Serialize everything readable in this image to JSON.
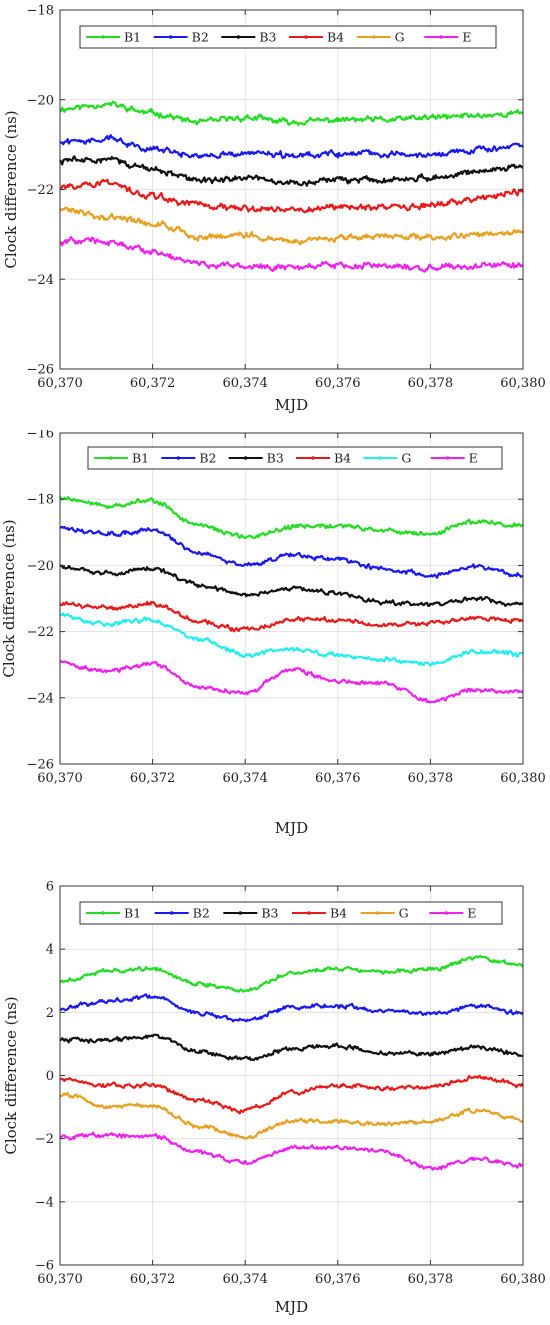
{
  "chart_data": [
    {
      "type": "line",
      "xlabel": "MJD",
      "ylabel": "Clock difference (ns)",
      "xlim": [
        60370,
        60380
      ],
      "ylim": [
        -26,
        -18
      ],
      "xticks": [
        60370,
        60372,
        60374,
        60376,
        60378,
        60380
      ],
      "xtick_labels": [
        "60,370",
        "60,372",
        "60,374",
        "60,376",
        "60,378",
        "60,380"
      ],
      "yticks": [
        -26,
        -24,
        -22,
        -20,
        -18
      ],
      "ytick_labels": [
        "−26",
        "−24",
        "−22",
        "−20",
        "−18"
      ],
      "grid": true,
      "legend_position": "top",
      "x": [
        60370,
        60371,
        60372,
        60373,
        60374,
        60375,
        60376,
        60377,
        60378,
        60379,
        60380
      ],
      "series": [
        {
          "name": "B1",
          "color": "#22dd22",
          "values": [
            -20.2,
            -20.1,
            -20.3,
            -20.5,
            -20.4,
            -20.5,
            -20.45,
            -20.45,
            -20.4,
            -20.35,
            -20.3
          ]
        },
        {
          "name": "B2",
          "color": "#1a1aee",
          "values": [
            -20.95,
            -20.85,
            -21.1,
            -21.25,
            -21.2,
            -21.25,
            -21.2,
            -21.2,
            -21.2,
            -21.1,
            -21.05
          ]
        },
        {
          "name": "B3",
          "color": "#111111",
          "values": [
            -21.35,
            -21.3,
            -21.55,
            -21.8,
            -21.75,
            -21.85,
            -21.8,
            -21.8,
            -21.75,
            -21.6,
            -21.5
          ]
        },
        {
          "name": "B4",
          "color": "#e81a1a",
          "values": [
            -21.95,
            -21.85,
            -22.15,
            -22.35,
            -22.4,
            -22.45,
            -22.4,
            -22.4,
            -22.35,
            -22.2,
            -22.05
          ]
        },
        {
          "name": "G",
          "color": "#e8a020",
          "values": [
            -22.45,
            -22.6,
            -22.75,
            -23.05,
            -23.0,
            -23.15,
            -23.1,
            -23.05,
            -23.05,
            -23.0,
            -22.95
          ]
        },
        {
          "name": "E",
          "color": "#ee22ee",
          "values": [
            -23.15,
            -23.15,
            -23.4,
            -23.65,
            -23.7,
            -23.75,
            -23.7,
            -23.7,
            -23.75,
            -23.7,
            -23.7
          ]
        }
      ]
    },
    {
      "type": "line",
      "xlabel": "MJD",
      "ylabel": "Clock difference (ns)",
      "xlim": [
        60370,
        60380
      ],
      "ylim": [
        -26,
        -16
      ],
      "xticks": [
        60370,
        60372,
        60374,
        60376,
        60378,
        60380
      ],
      "xtick_labels": [
        "60,370",
        "60,372",
        "60,374",
        "60,376",
        "60,378",
        "60,380"
      ],
      "yticks": [
        -26,
        -24,
        -22,
        -20,
        -18,
        -16
      ],
      "ytick_labels": [
        "−26",
        "−24",
        "−22",
        "−20",
        "−18",
        "−16"
      ],
      "grid": true,
      "legend_position": "top",
      "x": [
        60370,
        60371,
        60372,
        60373,
        60374,
        60375,
        60376,
        60377,
        60378,
        60379,
        60380
      ],
      "series": [
        {
          "name": "B1",
          "color": "#22dd22",
          "values": [
            -17.95,
            -18.2,
            -18.05,
            -18.8,
            -19.15,
            -18.85,
            -18.8,
            -18.95,
            -19.05,
            -18.65,
            -18.8
          ]
        },
        {
          "name": "B2",
          "color": "#1a1aee",
          "values": [
            -18.85,
            -19.05,
            -18.95,
            -19.6,
            -20.0,
            -19.7,
            -19.8,
            -20.1,
            -20.3,
            -20.05,
            -20.3
          ]
        },
        {
          "name": "B3",
          "color": "#111111",
          "values": [
            -20.05,
            -20.25,
            -20.1,
            -20.6,
            -20.9,
            -20.7,
            -20.85,
            -21.1,
            -21.2,
            -21.0,
            -21.2
          ]
        },
        {
          "name": "B4",
          "color": "#e81a1a",
          "values": [
            -21.15,
            -21.3,
            -21.15,
            -21.7,
            -21.95,
            -21.65,
            -21.65,
            -21.8,
            -21.75,
            -21.6,
            -21.65
          ]
        },
        {
          "name": "G",
          "color": "#22eeee",
          "values": [
            -21.5,
            -21.75,
            -21.65,
            -22.25,
            -22.7,
            -22.55,
            -22.7,
            -22.85,
            -22.95,
            -22.6,
            -22.7
          ]
        },
        {
          "name": "E",
          "color": "#ee22ee",
          "values": [
            -22.95,
            -23.2,
            -22.95,
            -23.7,
            -23.85,
            -23.15,
            -23.5,
            -23.55,
            -24.1,
            -23.75,
            -23.85
          ]
        }
      ]
    },
    {
      "type": "line",
      "xlabel": "MJD",
      "ylabel": "Clock difference (ns)",
      "xlim": [
        60370,
        60380
      ],
      "ylim": [
        -6,
        6
      ],
      "xticks": [
        60370,
        60372,
        60374,
        60376,
        60378,
        60380
      ],
      "xtick_labels": [
        "60,370",
        "60,372",
        "60,374",
        "60,376",
        "60,378",
        "60,380"
      ],
      "yticks": [
        -6,
        -4,
        -2,
        0,
        2,
        4,
        6
      ],
      "ytick_labels": [
        "−6",
        "−4",
        "−2",
        "0",
        "2",
        "4",
        "6"
      ],
      "grid": true,
      "legend_position": "top",
      "x": [
        60370,
        60371,
        60372,
        60373,
        60374,
        60375,
        60376,
        60377,
        60378,
        60379,
        60380
      ],
      "series": [
        {
          "name": "B1",
          "color": "#22dd22",
          "values": [
            3.0,
            3.3,
            3.4,
            2.9,
            2.7,
            3.25,
            3.4,
            3.3,
            3.35,
            3.7,
            3.5
          ]
        },
        {
          "name": "B2",
          "color": "#1a1aee",
          "values": [
            2.15,
            2.35,
            2.5,
            1.95,
            1.75,
            2.15,
            2.2,
            2.05,
            1.95,
            2.2,
            1.95
          ]
        },
        {
          "name": "B3",
          "color": "#111111",
          "values": [
            1.15,
            1.1,
            1.25,
            0.75,
            0.5,
            0.85,
            0.95,
            0.7,
            0.7,
            0.9,
            0.65
          ]
        },
        {
          "name": "B4",
          "color": "#e81a1a",
          "values": [
            -0.1,
            -0.3,
            -0.3,
            -0.8,
            -1.1,
            -0.55,
            -0.3,
            -0.4,
            -0.35,
            -0.05,
            -0.3
          ]
        },
        {
          "name": "G",
          "color": "#e8a020",
          "values": [
            -0.6,
            -0.95,
            -0.95,
            -1.6,
            -1.95,
            -1.45,
            -1.45,
            -1.55,
            -1.45,
            -1.1,
            -1.4
          ]
        },
        {
          "name": "E",
          "color": "#ee22ee",
          "values": [
            -1.95,
            -1.9,
            -1.9,
            -2.45,
            -2.75,
            -2.3,
            -2.3,
            -2.4,
            -2.95,
            -2.65,
            -2.85
          ]
        }
      ]
    }
  ]
}
